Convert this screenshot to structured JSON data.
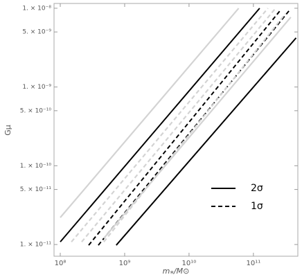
{
  "chart_data": {
    "type": "line",
    "xlabel": "m⁎/M⊙",
    "ylabel": "Gμ",
    "xscale": "log",
    "yscale": "log",
    "xlim": [
      80000000.0,
      490000000000.0
    ],
    "ylim": [
      7.1e-12,
      1.15e-08
    ],
    "xticks": [
      {
        "value": 100000000.0,
        "label": "10⁸"
      },
      {
        "value": 1000000000.0,
        "label": "10⁹"
      },
      {
        "value": 10000000000.0,
        "label": "10¹⁰"
      },
      {
        "value": 100000000000.0,
        "label": "10¹¹"
      }
    ],
    "yticks": [
      {
        "value": 1e-08,
        "label": "1. × 10⁻⁸"
      },
      {
        "value": 5e-09,
        "label": "5. × 10⁻⁹"
      },
      {
        "value": 1e-09,
        "label": "1. × 10⁻⁹"
      },
      {
        "value": 5e-10,
        "label": "5. × 10⁻¹⁰"
      },
      {
        "value": 1e-10,
        "label": "1. × 10⁻¹⁰"
      },
      {
        "value": 5e-11,
        "label": "5. × 10⁻¹¹"
      },
      {
        "value": 1e-11,
        "label": "1. × 10⁻¹¹"
      }
    ],
    "series": [
      {
        "color": "#d3d3d3",
        "dash": false,
        "x": [
          100000000.0,
          59000000000.0
        ],
        "y": [
          2.2e-11,
          1e-08
        ]
      },
      {
        "color": "#000000",
        "dash": false,
        "x": [
          100000000.0,
          125000000000.0
        ],
        "y": [
          1.08e-11,
          1e-08
        ]
      },
      {
        "color": "#d3d3d3",
        "dash": true,
        "x": [
          149000000.0,
          168000000000.0
        ],
        "y": [
          1.08e-11,
          1e-08
        ]
      },
      {
        "color": "#d3d3d3",
        "dash": true,
        "x": [
          215000000.0,
          221000000000.0
        ],
        "y": [
          1.08e-11,
          1e-08
        ]
      },
      {
        "color": "#000000",
        "dash": true,
        "x": [
          276000000.0,
          262000000000.0
        ],
        "y": [
          9.8e-12,
          9.4e-09
        ]
      },
      {
        "color": "#000000",
        "dash": true,
        "x": [
          390000000.0,
          362000000000.0
        ],
        "y": [
          9.8e-12,
          9.4e-09
        ]
      },
      {
        "color": "#d3d3d3",
        "dash": true,
        "x": [
          475000000.0,
          313000000000.0
        ],
        "y": [
          1.08e-11,
          8.5e-09
        ]
      },
      {
        "color": "#d3d3d3",
        "dash": false,
        "x": [
          475000000.0,
          381000000000.0
        ],
        "y": [
          1.2e-11,
          7.7e-09
        ]
      },
      {
        "color": "#000000",
        "dash": false,
        "x": [
          740000000.0,
          460000000000.0
        ],
        "y": [
          9.8e-12,
          4.2e-09
        ]
      }
    ],
    "legend": [
      {
        "label": "2σ",
        "color": "#000000",
        "dash": false
      },
      {
        "label": "1σ",
        "color": "#000000",
        "dash": true
      }
    ]
  }
}
